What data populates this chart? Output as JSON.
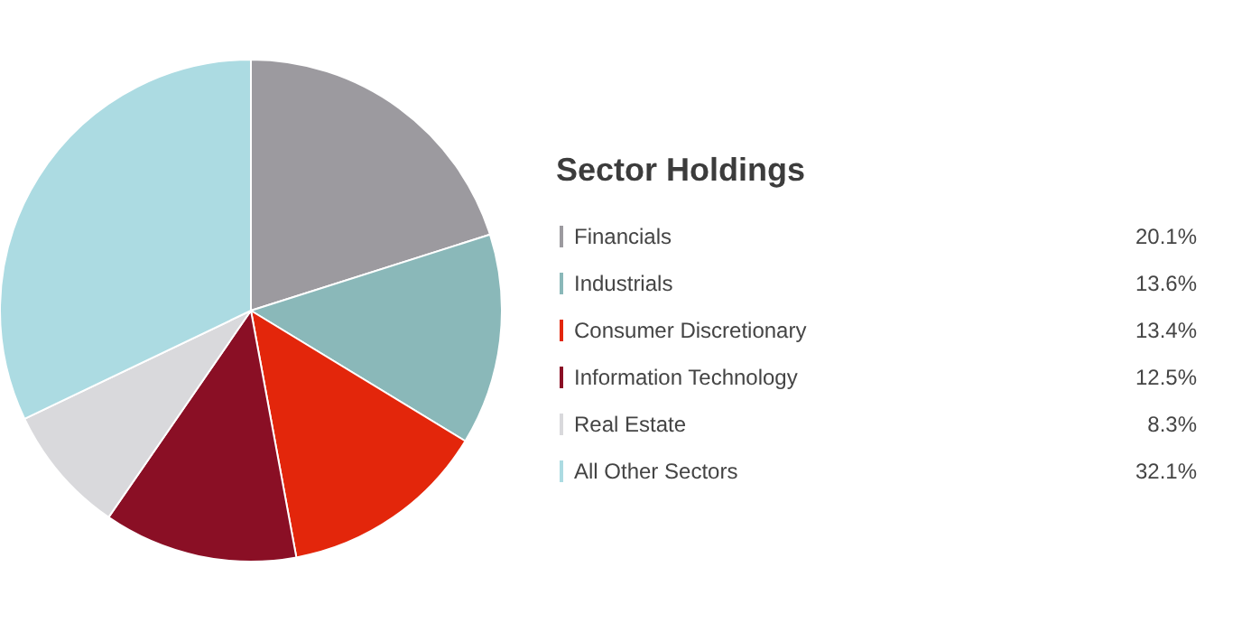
{
  "chart_data": {
    "type": "pie",
    "title": "Sector Holdings",
    "categories": [
      "Financials",
      "Industrials",
      "Consumer Discretionary",
      "Information Technology",
      "Real Estate",
      "All Other Sectors"
    ],
    "values": [
      20.1,
      13.6,
      13.4,
      12.5,
      8.3,
      32.1
    ],
    "colors": [
      "#9c9a9f",
      "#8ab8b9",
      "#e3260b",
      "#8a0f25",
      "#d9d9dc",
      "#acdbe2"
    ],
    "value_labels": [
      "20.1%",
      "13.6%",
      "13.4%",
      "12.5%",
      "8.3%",
      "32.1%"
    ],
    "legend": "right"
  }
}
